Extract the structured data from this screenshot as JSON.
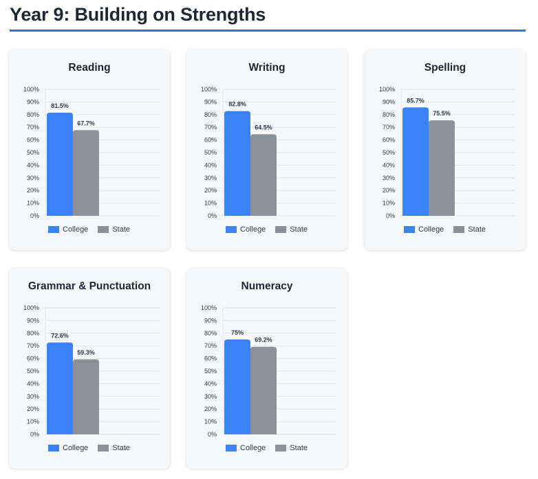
{
  "page": {
    "title": "Year 9: Building on Strengths"
  },
  "colors": {
    "college": "#3b82f6",
    "state": "#8b9099",
    "rule": "#2f74d9"
  },
  "chart_data": [
    {
      "type": "bar",
      "title": "Reading",
      "categories": [
        ""
      ],
      "series": [
        {
          "name": "College",
          "values": [
            81.5
          ]
        },
        {
          "name": "State",
          "values": [
            67.7
          ]
        }
      ],
      "data_labels": [
        "81.5%",
        "67.7%"
      ],
      "ylim": [
        0,
        100
      ],
      "yticks": [
        "0%",
        "10%",
        "20%",
        "30%",
        "40%",
        "50%",
        "60%",
        "70%",
        "80%",
        "90%",
        "100%"
      ],
      "grid": true,
      "legend": "bottom"
    },
    {
      "type": "bar",
      "title": "Writing",
      "categories": [
        ""
      ],
      "series": [
        {
          "name": "College",
          "values": [
            82.8
          ]
        },
        {
          "name": "State",
          "values": [
            64.5
          ]
        }
      ],
      "data_labels": [
        "82.8%",
        "64.5%"
      ],
      "ylim": [
        0,
        100
      ],
      "yticks": [
        "0%",
        "10%",
        "20%",
        "30%",
        "40%",
        "50%",
        "60%",
        "70%",
        "80%",
        "90%",
        "100%"
      ],
      "grid": true,
      "legend": "bottom"
    },
    {
      "type": "bar",
      "title": "Spelling",
      "categories": [
        ""
      ],
      "series": [
        {
          "name": "College",
          "values": [
            85.7
          ]
        },
        {
          "name": "State",
          "values": [
            75.5
          ]
        }
      ],
      "data_labels": [
        "85.7%",
        "75.5%"
      ],
      "ylim": [
        0,
        100
      ],
      "yticks": [
        "0%",
        "10%",
        "20%",
        "30%",
        "40%",
        "50%",
        "60%",
        "70%",
        "80%",
        "90%",
        "100%"
      ],
      "grid": true,
      "legend": "bottom"
    },
    {
      "type": "bar",
      "title": "Grammar & Punctuation",
      "categories": [
        ""
      ],
      "series": [
        {
          "name": "College",
          "values": [
            72.6
          ]
        },
        {
          "name": "State",
          "values": [
            59.3
          ]
        }
      ],
      "data_labels": [
        "72.6%",
        "59.3%"
      ],
      "ylim": [
        0,
        100
      ],
      "yticks": [
        "0%",
        "10%",
        "20%",
        "30%",
        "40%",
        "50%",
        "60%",
        "70%",
        "80%",
        "90%",
        "100%"
      ],
      "grid": true,
      "legend": "bottom"
    },
    {
      "type": "bar",
      "title": "Numeracy",
      "categories": [
        ""
      ],
      "series": [
        {
          "name": "College",
          "values": [
            75
          ]
        },
        {
          "name": "State",
          "values": [
            69.2
          ]
        }
      ],
      "data_labels": [
        "75%",
        "69.2%"
      ],
      "ylim": [
        0,
        100
      ],
      "yticks": [
        "0%",
        "10%",
        "20%",
        "30%",
        "40%",
        "50%",
        "60%",
        "70%",
        "80%",
        "90%",
        "100%"
      ],
      "grid": true,
      "legend": "bottom"
    }
  ]
}
